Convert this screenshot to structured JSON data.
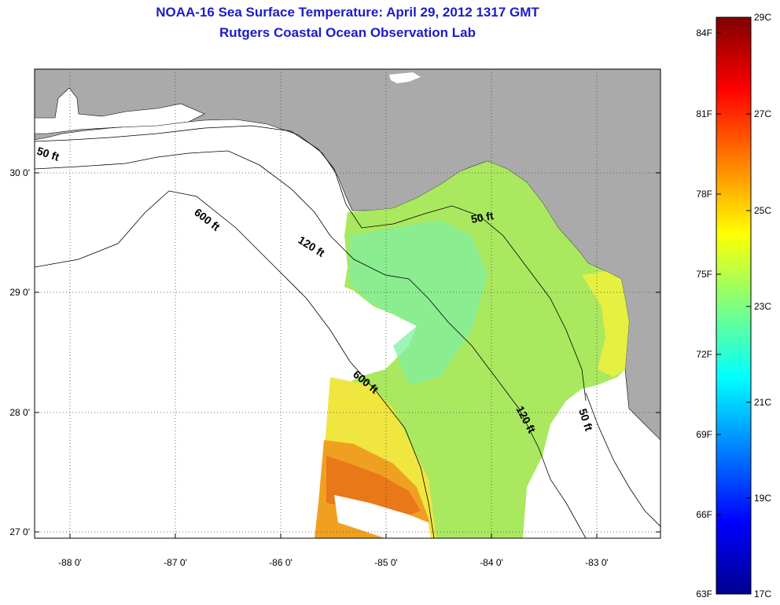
{
  "title": "NOAA-16 Sea Surface Temperature:  April 29, 2012 1317 GMT",
  "subtitle": "Rutgers Coastal Ocean Observation Lab",
  "map": {
    "x_ticks": [
      "-88 0'",
      "-87 0'",
      "-86 0'",
      "-85 0'",
      "-84 0'",
      "-83 0'"
    ],
    "y_ticks": [
      "30 0'",
      "29 0'",
      "28 0'",
      "27 0'"
    ],
    "contour_labels": [
      "50 ft",
      "600 ft",
      "120 ft",
      "50 ft",
      "600 ft",
      "120 ft",
      "50 ft"
    ],
    "colors": {
      "land": "#aaaaaa",
      "no_data": "#ffffff"
    }
  },
  "colorbar": {
    "fahrenheit": [
      "84F",
      "81F",
      "78F",
      "75F",
      "72F",
      "69F",
      "66F",
      "63F"
    ],
    "celsius": [
      "29C",
      "27C",
      "25C",
      "23C",
      "21C",
      "19C",
      "17C"
    ]
  }
}
